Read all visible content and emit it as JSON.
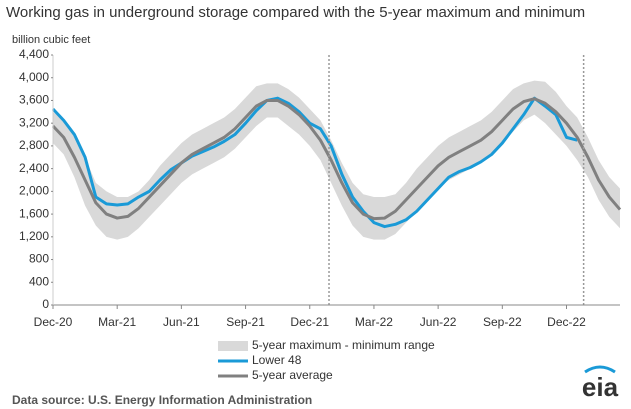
{
  "chart_data": {
    "type": "line",
    "title": "Working gas in underground  storage compared with the 5-year maximum and minimum",
    "y_axis_label": "billion cubic feet",
    "source": "Data source:  U.S. Energy Information Administration",
    "logo_text": "eia",
    "xlim": [
      0,
      26.5
    ],
    "xticks": [
      {
        "value": 0,
        "label": "Dec-20"
      },
      {
        "value": 3,
        "label": "Mar-21"
      },
      {
        "value": 6,
        "label": "Jun-21"
      },
      {
        "value": 9,
        "label": "Sep-21"
      },
      {
        "value": 12,
        "label": "Dec-21"
      },
      {
        "value": 15,
        "label": "Mar-22"
      },
      {
        "value": 18,
        "label": "Jun-22"
      },
      {
        "value": 21,
        "label": "Sep-22"
      },
      {
        "value": 24,
        "label": "Dec-22"
      }
    ],
    "ylim": [
      0,
      4400
    ],
    "yticks": [
      0,
      400,
      800,
      {
        "value": 1200,
        "label": "1,200"
      },
      {
        "value": 1600,
        "label": "1,600"
      },
      {
        "value": 2000,
        "label": "2,000"
      },
      {
        "value": 2400,
        "label": "2,400"
      },
      {
        "value": 2800,
        "label": "2,800"
      },
      {
        "value": 3200,
        "label": "3,200"
      },
      {
        "value": 3600,
        "label": "3,600"
      },
      {
        "value": 4000,
        "label": "4,000"
      },
      {
        "value": 4400,
        "label": "4,400"
      }
    ],
    "reference_lines_x": [
      12.9,
      24.8
    ],
    "x": [
      0,
      0.5,
      1,
      1.5,
      2,
      2.5,
      3,
      3.5,
      4,
      4.5,
      5,
      5.5,
      6,
      6.5,
      7,
      7.5,
      8,
      8.5,
      9,
      9.5,
      10,
      10.5,
      11,
      11.5,
      12,
      12.5,
      13,
      13.5,
      14,
      14.5,
      15,
      15.5,
      16,
      16.5,
      17,
      17.5,
      18,
      18.5,
      19,
      19.5,
      20,
      20.5,
      21,
      21.5,
      22,
      22.5,
      23,
      23.5,
      24,
      24.5,
      25,
      25.5,
      26,
      26.5
    ],
    "series": [
      {
        "name": "5-year maximum - minimum range",
        "kind": "band",
        "color": "#d9d9d9",
        "high": [
          3400,
          3250,
          2950,
          2600,
          2150,
          2000,
          1900,
          1900,
          2000,
          2200,
          2450,
          2650,
          2850,
          3000,
          3100,
          3200,
          3300,
          3450,
          3650,
          3850,
          3900,
          3900,
          3800,
          3650,
          3450,
          3250,
          2900,
          2500,
          2150,
          1950,
          1900,
          1900,
          1950,
          2150,
          2400,
          2600,
          2800,
          2950,
          3050,
          3150,
          3250,
          3400,
          3600,
          3800,
          3900,
          3950,
          3930,
          3750,
          3500,
          3300,
          2950,
          2550,
          2250,
          2050
        ],
        "low": [
          2850,
          2650,
          2250,
          1750,
          1400,
          1200,
          1150,
          1200,
          1350,
          1550,
          1750,
          1950,
          2150,
          2300,
          2400,
          2500,
          2600,
          2750,
          2950,
          3150,
          3300,
          3300,
          3150,
          3000,
          2800,
          2550,
          2150,
          1750,
          1400,
          1200,
          1150,
          1150,
          1250,
          1450,
          1650,
          1850,
          2050,
          2200,
          2300,
          2400,
          2500,
          2650,
          2850,
          3050,
          3250,
          3350,
          3200,
          3000,
          2800,
          2550,
          2250,
          1850,
          1550,
          1350
        ]
      },
      {
        "name": "Lower 48",
        "kind": "line",
        "color": "#1a9ad7",
        "values": [
          3450,
          3250,
          3000,
          2600,
          1900,
          1780,
          1760,
          1780,
          1900,
          2000,
          2200,
          2380,
          2500,
          2620,
          2700,
          2780,
          2880,
          3000,
          3200,
          3420,
          3600,
          3640,
          3550,
          3400,
          3200,
          3100,
          2800,
          2300,
          1900,
          1650,
          1450,
          1380,
          1420,
          1500,
          1650,
          1850,
          2050,
          2250,
          2350,
          2420,
          2520,
          2650,
          2850,
          3100,
          3350,
          3640,
          3500,
          3350,
          2950,
          2900,
          null,
          null,
          null,
          null
        ]
      },
      {
        "name": "5-year average",
        "kind": "line",
        "color": "#808080",
        "values": [
          3150,
          2950,
          2600,
          2200,
          1800,
          1600,
          1530,
          1560,
          1700,
          1900,
          2100,
          2300,
          2500,
          2650,
          2750,
          2850,
          2950,
          3100,
          3300,
          3500,
          3600,
          3600,
          3500,
          3350,
          3150,
          2900,
          2550,
          2150,
          1800,
          1600,
          1520,
          1530,
          1650,
          1850,
          2050,
          2250,
          2450,
          2600,
          2700,
          2800,
          2900,
          3050,
          3250,
          3450,
          3580,
          3630,
          3550,
          3400,
          3200,
          2950,
          2600,
          2200,
          1900,
          1680
        ]
      }
    ]
  }
}
